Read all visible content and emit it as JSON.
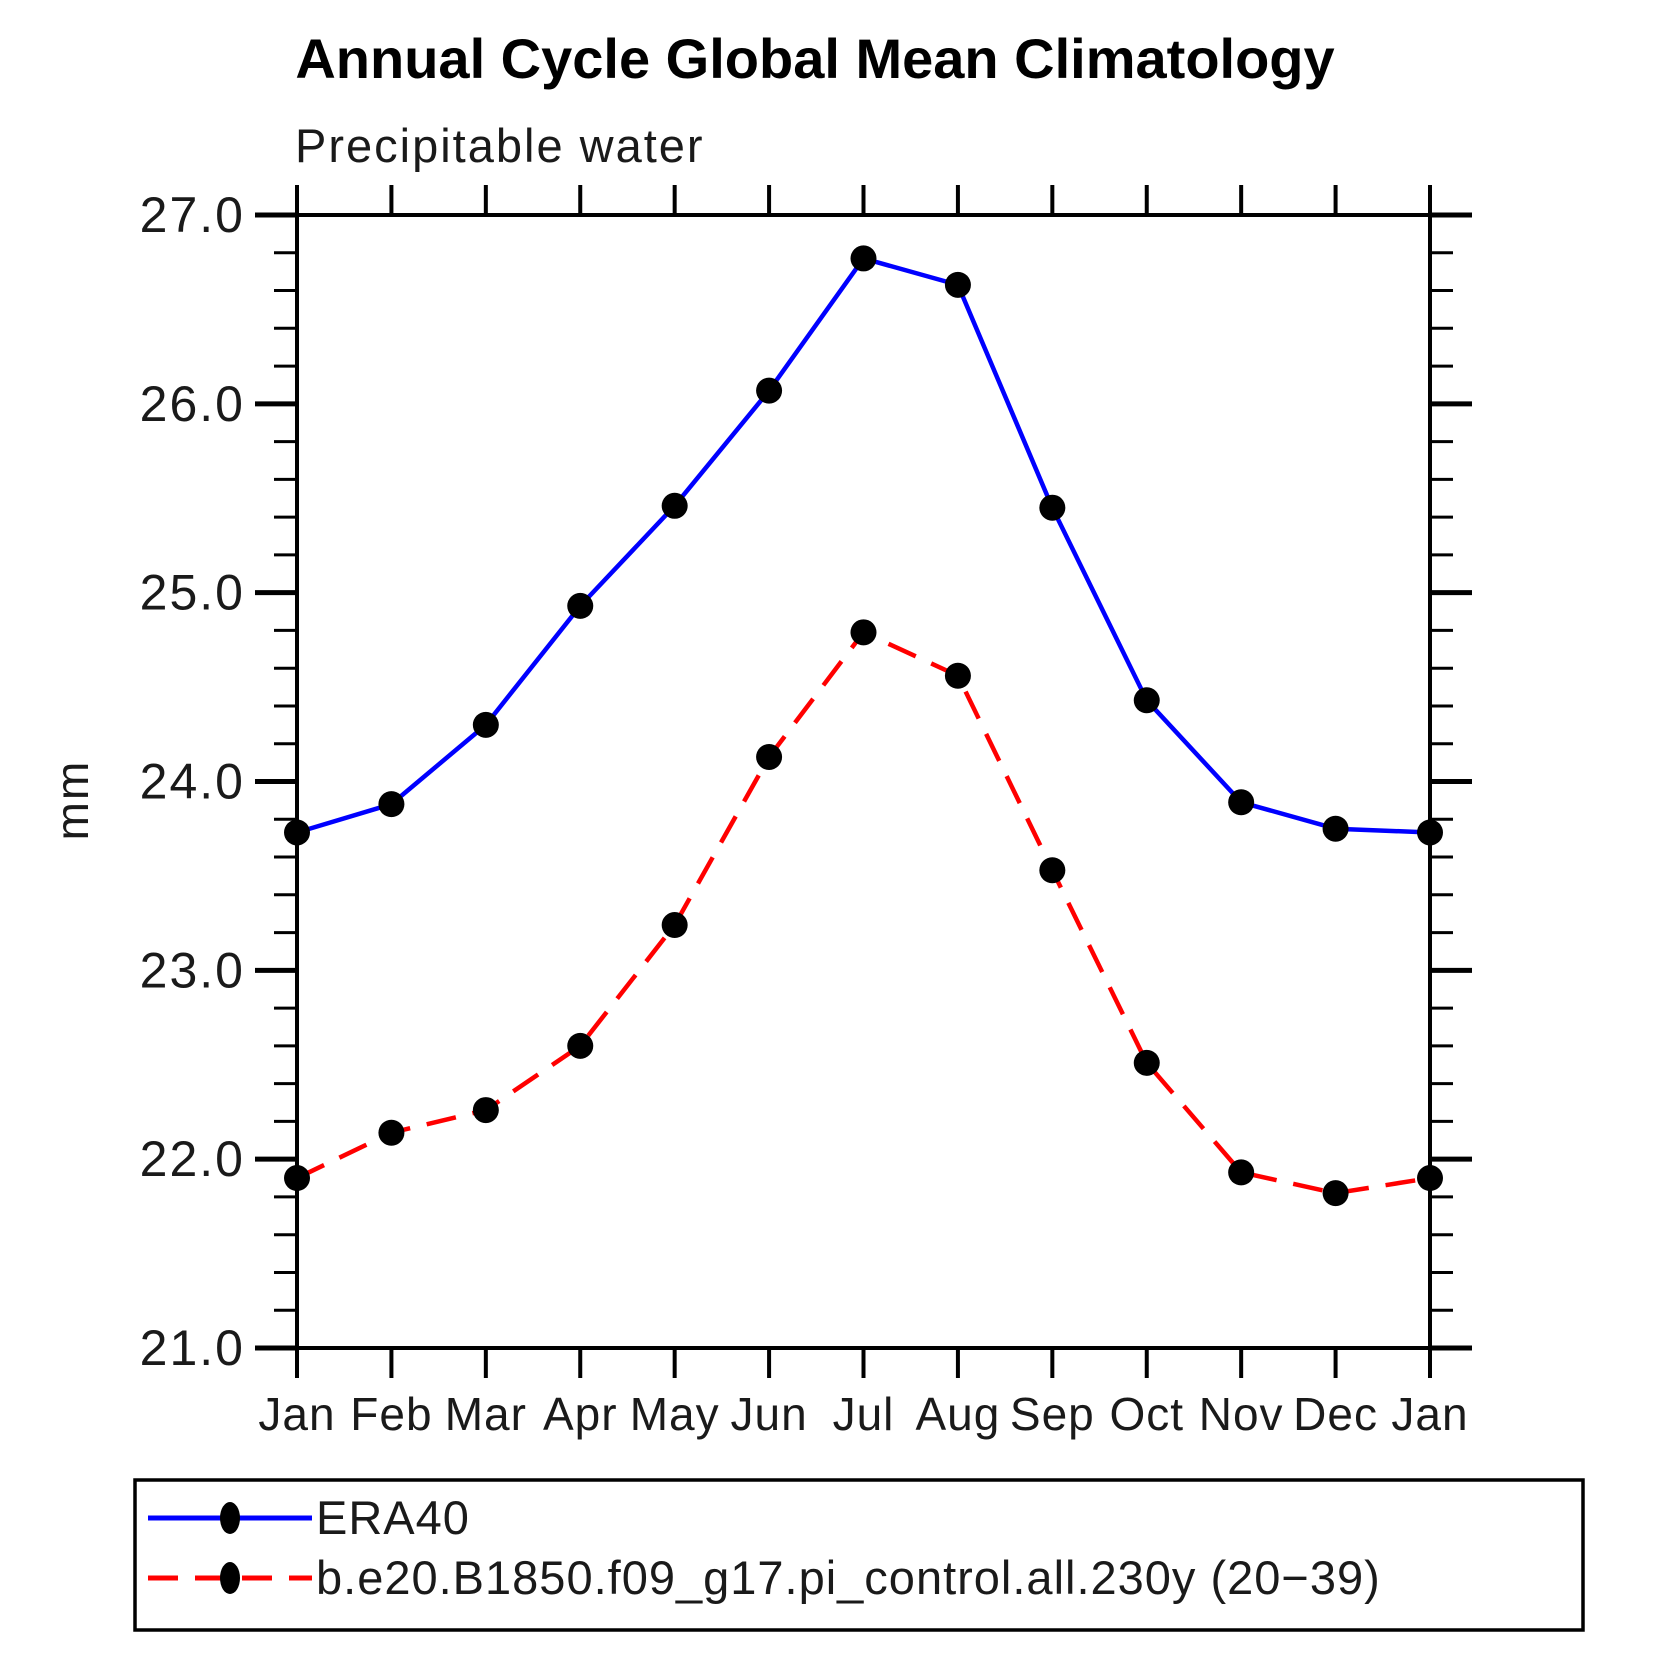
{
  "title": "Annual Cycle Global Mean Climatology",
  "subtitle": "Precipitable water",
  "chart_data": {
    "type": "line",
    "categories": [
      "Jan",
      "Feb",
      "Mar",
      "Apr",
      "May",
      "Jun",
      "Jul",
      "Aug",
      "Sep",
      "Oct",
      "Nov",
      "Dec",
      "Jan"
    ],
    "series": [
      {
        "name": "ERA40",
        "line_style": "solid",
        "line_color": "#0000ff",
        "marker": "filled-circle",
        "marker_color": "#000000",
        "values": [
          23.73,
          23.88,
          24.3,
          24.93,
          25.46,
          26.07,
          26.77,
          26.63,
          25.45,
          24.43,
          23.89,
          23.75,
          23.73
        ]
      },
      {
        "name": "b.e20.B1850.f09_g17.pi_control.all.230y (20−39)",
        "line_style": "dashed",
        "line_color": "#ff0000",
        "marker": "filled-circle",
        "marker_color": "#000000",
        "values": [
          21.9,
          22.14,
          22.26,
          22.6,
          23.24,
          24.13,
          24.79,
          24.56,
          23.53,
          22.51,
          21.93,
          21.82,
          21.9
        ]
      }
    ],
    "xlabel": "",
    "ylabel": "mm",
    "ylim": [
      21.0,
      27.0
    ],
    "ytick_labels": [
      "21.0",
      "22.0",
      "23.0",
      "24.0",
      "25.0",
      "26.0",
      "27.0"
    ],
    "ytick_major_step": 1.0,
    "ytick_minor_step": 0.2,
    "grid": "off",
    "legend_position": "bottom-left-box"
  },
  "colors": {
    "background": "#ffffff",
    "axis": "#000000",
    "text": "#1a1a1a",
    "series1": "#0000ff",
    "series2": "#ff0000",
    "marker": "#000000"
  }
}
